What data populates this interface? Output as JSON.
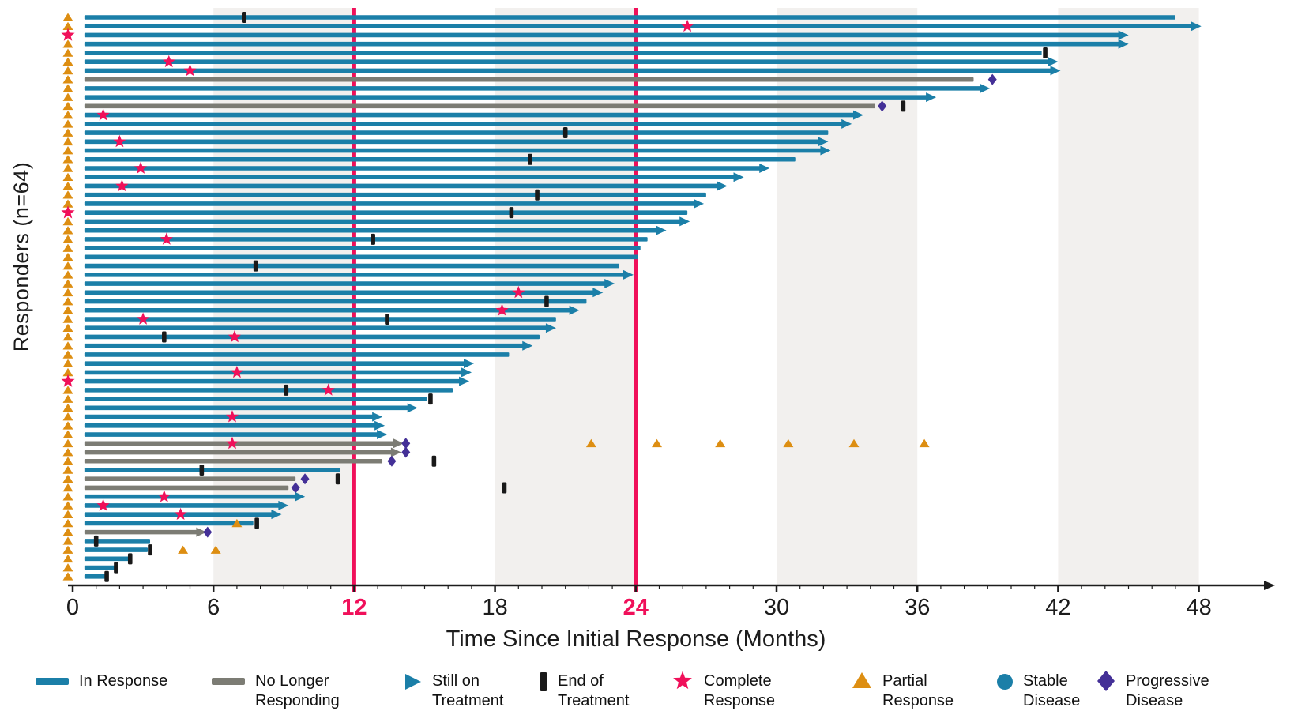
{
  "chart_data": {
    "type": "bar",
    "subtype": "swimmer-plot",
    "title": "",
    "xlabel": "Time Since Initial Response (Months)",
    "ylabel": "Responders (n=64)",
    "xlim": [
      0,
      48
    ],
    "x_ticks": [
      0,
      6,
      12,
      18,
      24,
      30,
      36,
      42,
      48
    ],
    "highlighted_ticks": [
      12,
      24
    ],
    "reference_lines_months": [
      12,
      24
    ],
    "shaded_bands_months": [
      [
        6,
        12
      ],
      [
        18,
        24
      ],
      [
        30,
        36
      ],
      [
        42,
        48
      ]
    ],
    "marker_types": {
      "cr": "complete-response-star",
      "pr": "partial-response-triangle",
      "pd": "progressive-disease-diamond",
      "eot": "end-of-treatment-tick"
    },
    "rows": [
      {
        "c": "blue",
        "e": 47.0,
        "a": 0,
        "s": "pr",
        "m": [
          [
            "eot",
            7.3
          ]
        ]
      },
      {
        "c": "blue",
        "e": 47.7,
        "a": 1,
        "s": "pr",
        "m": [
          [
            "cr",
            26.2
          ]
        ]
      },
      {
        "c": "blue",
        "e": 44.6,
        "a": 1,
        "s": "cr",
        "m": []
      },
      {
        "c": "blue",
        "e": 44.6,
        "a": 1,
        "s": "pr",
        "m": []
      },
      {
        "c": "blue",
        "e": 41.3,
        "a": 0,
        "s": "pr",
        "m": [
          [
            "eot",
            41.45
          ]
        ]
      },
      {
        "c": "blue",
        "e": 41.6,
        "a": 1,
        "s": "pr",
        "m": [
          [
            "cr",
            4.1
          ]
        ]
      },
      {
        "c": "blue",
        "e": 41.7,
        "a": 1,
        "s": "pr",
        "m": [
          [
            "cr",
            5.0
          ]
        ]
      },
      {
        "c": "gray",
        "e": 38.4,
        "a": 0,
        "s": "pr",
        "m": [
          [
            "pd",
            39.2
          ]
        ]
      },
      {
        "c": "blue",
        "e": 38.7,
        "a": 1,
        "s": "pr",
        "m": []
      },
      {
        "c": "blue",
        "e": 36.4,
        "a": 1,
        "s": "pr",
        "m": []
      },
      {
        "c": "gray",
        "e": 34.2,
        "a": 0,
        "s": "pr",
        "m": [
          [
            "pd",
            34.5
          ],
          [
            "eot",
            35.4
          ]
        ]
      },
      {
        "c": "blue",
        "e": 33.3,
        "a": 1,
        "s": "pr",
        "m": [
          [
            "cr",
            1.3
          ]
        ]
      },
      {
        "c": "blue",
        "e": 32.8,
        "a": 1,
        "s": "pr",
        "m": []
      },
      {
        "c": "blue",
        "e": 32.2,
        "a": 0,
        "s": "pr",
        "m": [
          [
            "eot",
            21.0
          ]
        ]
      },
      {
        "c": "blue",
        "e": 31.8,
        "a": 1,
        "s": "pr",
        "m": [
          [
            "cr",
            2.0
          ]
        ]
      },
      {
        "c": "blue",
        "e": 31.9,
        "a": 1,
        "s": "pr",
        "m": []
      },
      {
        "c": "blue",
        "e": 30.8,
        "a": 0,
        "s": "pr",
        "m": [
          [
            "eot",
            19.5
          ]
        ]
      },
      {
        "c": "blue",
        "e": 29.3,
        "a": 1,
        "s": "pr",
        "m": [
          [
            "cr",
            2.9
          ]
        ]
      },
      {
        "c": "blue",
        "e": 28.2,
        "a": 1,
        "s": "pr",
        "m": []
      },
      {
        "c": "blue",
        "e": 27.5,
        "a": 1,
        "s": "pr",
        "m": [
          [
            "cr",
            2.1
          ]
        ]
      },
      {
        "c": "blue",
        "e": 27.0,
        "a": 0,
        "s": "pr",
        "m": [
          [
            "eot",
            19.8
          ]
        ]
      },
      {
        "c": "blue",
        "e": 26.5,
        "a": 1,
        "s": "pr",
        "m": []
      },
      {
        "c": "blue",
        "e": 26.2,
        "a": 0,
        "s": "cr",
        "m": [
          [
            "eot",
            18.7
          ]
        ]
      },
      {
        "c": "blue",
        "e": 25.9,
        "a": 1,
        "s": "pr",
        "m": []
      },
      {
        "c": "blue",
        "e": 24.9,
        "a": 1,
        "s": "pr",
        "m": []
      },
      {
        "c": "blue",
        "e": 24.5,
        "a": 0,
        "s": "pr",
        "m": [
          [
            "cr",
            4.0
          ],
          [
            "eot",
            12.8
          ]
        ]
      },
      {
        "c": "blue",
        "e": 24.2,
        "a": 0,
        "s": "pr",
        "m": []
      },
      {
        "c": "blue",
        "e": 24.1,
        "a": 0,
        "s": "pr",
        "m": []
      },
      {
        "c": "blue",
        "e": 23.3,
        "a": 0,
        "s": "pr",
        "m": [
          [
            "eot",
            7.8
          ]
        ]
      },
      {
        "c": "blue",
        "e": 23.5,
        "a": 1,
        "s": "pr",
        "m": []
      },
      {
        "c": "blue",
        "e": 22.7,
        "a": 1,
        "s": "pr",
        "m": []
      },
      {
        "c": "blue",
        "e": 22.2,
        "a": 1,
        "s": "pr",
        "m": [
          [
            "cr",
            19.0
          ]
        ]
      },
      {
        "c": "blue",
        "e": 21.9,
        "a": 0,
        "s": "pr",
        "m": [
          [
            "eot",
            20.2
          ]
        ]
      },
      {
        "c": "blue",
        "e": 21.2,
        "a": 1,
        "s": "pr",
        "m": [
          [
            "cr",
            18.3
          ]
        ]
      },
      {
        "c": "blue",
        "e": 20.6,
        "a": 0,
        "s": "pr",
        "m": [
          [
            "cr",
            3.0
          ],
          [
            "eot",
            13.4
          ]
        ]
      },
      {
        "c": "blue",
        "e": 20.2,
        "a": 1,
        "s": "pr",
        "m": []
      },
      {
        "c": "blue",
        "e": 19.9,
        "a": 0,
        "s": "pr",
        "m": [
          [
            "eot",
            3.9
          ],
          [
            "cr",
            6.9
          ]
        ]
      },
      {
        "c": "blue",
        "e": 19.2,
        "a": 1,
        "s": "pr",
        "m": []
      },
      {
        "c": "blue",
        "e": 18.6,
        "a": 0,
        "s": "pr",
        "m": []
      },
      {
        "c": "blue",
        "e": 16.7,
        "a": 1,
        "s": "pr",
        "m": []
      },
      {
        "c": "blue",
        "e": 16.6,
        "a": 1,
        "s": "pr",
        "m": [
          [
            "cr",
            7.0
          ]
        ]
      },
      {
        "c": "blue",
        "e": 16.5,
        "a": 1,
        "s": "cr",
        "m": []
      },
      {
        "c": "blue",
        "e": 16.2,
        "a": 0,
        "s": "pr",
        "m": [
          [
            "eot",
            9.1
          ],
          [
            "cr",
            10.9
          ]
        ]
      },
      {
        "c": "blue",
        "e": 15.1,
        "a": 0,
        "s": "pr",
        "m": [
          [
            "eot",
            15.25
          ]
        ]
      },
      {
        "c": "blue",
        "e": 14.3,
        "a": 1,
        "s": "pr",
        "m": []
      },
      {
        "c": "blue",
        "e": 12.8,
        "a": 1,
        "s": "pr",
        "m": [
          [
            "cr",
            6.8
          ]
        ]
      },
      {
        "c": "blue",
        "e": 12.9,
        "a": 1,
        "s": "pr",
        "m": []
      },
      {
        "c": "blue",
        "e": 13.0,
        "a": 1,
        "s": "pr",
        "m": []
      },
      {
        "c": "gray",
        "e": 13.7,
        "a": 1,
        "s": "pr",
        "m": [
          [
            "cr",
            6.8
          ],
          [
            "pd",
            14.2
          ],
          [
            "pr",
            22.1
          ],
          [
            "pr",
            24.9
          ],
          [
            "pr",
            27.6
          ],
          [
            "pr",
            30.5
          ],
          [
            "pr",
            33.3
          ],
          [
            "pr",
            36.3
          ]
        ]
      },
      {
        "c": "gray",
        "e": 13.6,
        "a": 1,
        "s": "pr",
        "m": [
          [
            "pd",
            14.2
          ]
        ]
      },
      {
        "c": "gray",
        "e": 13.2,
        "a": 0,
        "s": "pr",
        "m": [
          [
            "pd",
            13.6
          ],
          [
            "eot",
            15.4
          ]
        ]
      },
      {
        "c": "blue",
        "e": 11.4,
        "a": 0,
        "s": "pr",
        "m": [
          [
            "eot",
            5.5
          ]
        ]
      },
      {
        "c": "gray",
        "e": 9.5,
        "a": 0,
        "s": "pr",
        "m": [
          [
            "pd",
            9.9
          ],
          [
            "eot",
            11.3
          ]
        ]
      },
      {
        "c": "gray",
        "e": 9.2,
        "a": 0,
        "s": "pr",
        "m": [
          [
            "pd",
            9.5
          ],
          [
            "eot",
            18.4
          ]
        ]
      },
      {
        "c": "blue",
        "e": 9.5,
        "a": 1,
        "s": "pr",
        "m": [
          [
            "cr",
            3.9
          ]
        ]
      },
      {
        "c": "blue",
        "e": 8.8,
        "a": 1,
        "s": "pr",
        "m": [
          [
            "cr",
            1.3
          ]
        ]
      },
      {
        "c": "blue",
        "e": 8.5,
        "a": 1,
        "s": "pr",
        "m": [
          [
            "cr",
            4.6
          ]
        ]
      },
      {
        "c": "blue",
        "e": 7.7,
        "a": 0,
        "s": "pr",
        "m": [
          [
            "pr",
            7.0
          ],
          [
            "eot",
            7.85
          ]
        ]
      },
      {
        "c": "gray",
        "e": 5.3,
        "a": 1,
        "s": "pr",
        "m": [
          [
            "pd",
            5.75
          ]
        ]
      },
      {
        "c": "blue",
        "e": 3.3,
        "a": 0,
        "s": "pr",
        "m": [
          [
            "eot",
            1.0
          ]
        ]
      },
      {
        "c": "blue",
        "e": 3.2,
        "a": 0,
        "s": "pr",
        "m": [
          [
            "eot",
            3.3
          ],
          [
            "pr",
            4.7
          ],
          [
            "pr",
            6.1
          ]
        ]
      },
      {
        "c": "blue",
        "e": 2.4,
        "a": 0,
        "s": "pr",
        "m": [
          [
            "eot",
            2.45
          ]
        ]
      },
      {
        "c": "blue",
        "e": 1.8,
        "a": 0,
        "s": "pr",
        "m": [
          [
            "eot",
            1.85
          ]
        ]
      },
      {
        "c": "blue",
        "e": 1.4,
        "a": 0,
        "s": "pr",
        "m": [
          [
            "eot",
            1.45
          ]
        ]
      }
    ],
    "colors": {
      "in_response": "#1b7fa8",
      "no_longer_responding": "#7c7c74",
      "complete_response": "#f0105a",
      "partial_response": "#dd8e12",
      "progressive_disease": "#443097",
      "stable_disease": "#1b7fa8",
      "end_of_treatment": "#191919",
      "band": "#f2f0ee",
      "reference_line": "#f0105a",
      "axis": "#1c1c1c"
    },
    "legend": {
      "items": [
        {
          "icon": "in-response-bar-swatch",
          "line1": "In Response",
          "line2": ""
        },
        {
          "icon": "no-longer-responding-bar-swatch",
          "line1": "No Longer",
          "line2": "Responding"
        },
        {
          "icon": "still-on-treatment-arrow-icon",
          "line1": "Still on",
          "line2": "Treatment"
        },
        {
          "icon": "end-of-treatment-tick-icon",
          "line1": "End of",
          "line2": "Treatment"
        },
        {
          "icon": "complete-response-star-icon",
          "line1": "Complete",
          "line2": "Response"
        },
        {
          "icon": "partial-response-triangle-icon",
          "line1": "Partial",
          "line2": "Response"
        },
        {
          "icon": "stable-disease-circle-icon",
          "line1": "Stable",
          "line2": "Disease"
        },
        {
          "icon": "progressive-disease-diamond-icon",
          "line1": "Progressive",
          "line2": "Disease"
        }
      ]
    }
  }
}
